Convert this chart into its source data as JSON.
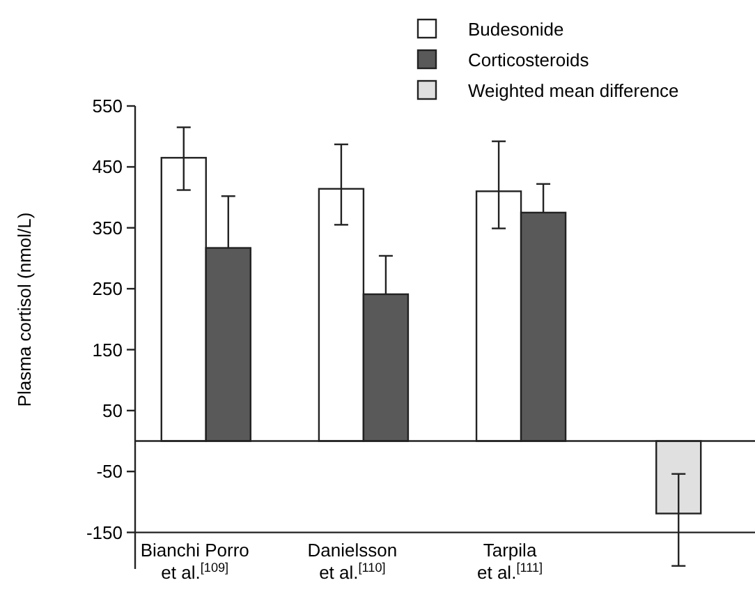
{
  "chart_data": {
    "type": "bar",
    "categories": [
      "Bianchi Porro\net al.$^{[109]}$",
      "Danielsson\net al.$^{[110]}$",
      "Tarpila\net al.$^{[111]}$",
      null
    ],
    "series": [
      {
        "name": "Budesonide",
        "color": "#ffffff",
        "values": [
          465,
          414,
          410,
          null
        ],
        "errors": [
          [
            412,
            515
          ],
          [
            355,
            487
          ],
          [
            349,
            492
          ],
          null
        ]
      },
      {
        "name": "Corticosteroids",
        "color": "#595959",
        "values": [
          317,
          241,
          375,
          null
        ],
        "errors": [
          [
            317,
            402
          ],
          [
            241,
            304
          ],
          [
            375,
            422
          ],
          null
        ]
      },
      {
        "name": "Weighted mean difference",
        "color": "#e0e0e0",
        "values": [
          null,
          null,
          null,
          -119
        ],
        "errors": [
          null,
          null,
          null,
          [
            -205,
            -54
          ]
        ]
      }
    ],
    "ylabel": "Plasma cortisol (nmol/L)",
    "ylim": [
      -210,
      550
    ],
    "yticks": [
      550,
      450,
      350,
      250,
      150,
      50,
      -50,
      -150
    ],
    "ref_lines": [
      {
        "axis": "y",
        "value": 0
      },
      {
        "axis": "y",
        "value": -150
      }
    ],
    "legend": "top right",
    "grid": false
  }
}
